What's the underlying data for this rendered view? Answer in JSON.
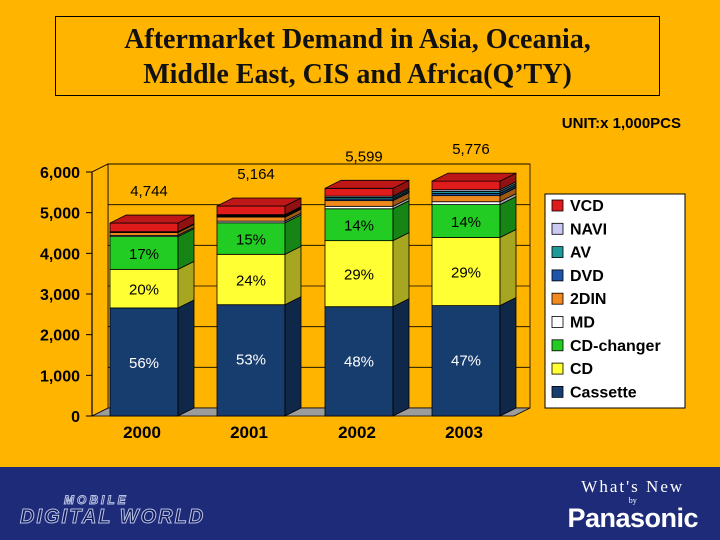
{
  "title_line1": "Aftermarket Demand in Asia, Oceania,",
  "title_line2": "Middle East, CIS and Africa(Q’TY)",
  "unit": "UNIT:x 1,000PCS",
  "footer": {
    "logo_top": "MOBILE",
    "logo_bottom": "DIGITAL WORLD",
    "whats_new": "What's New",
    "by": "by",
    "brand": "Panasonic"
  },
  "chart_data": {
    "type": "bar",
    "stacked": true,
    "categories": [
      "2000",
      "2001",
      "2002",
      "2003"
    ],
    "totals": [
      4744,
      5164,
      5599,
      5776
    ],
    "total_labels": [
      "4,744",
      "5,164",
      "5,599",
      "5,776"
    ],
    "ylim": [
      0,
      6000
    ],
    "yticks": [
      0,
      1000,
      2000,
      3000,
      4000,
      5000,
      6000
    ],
    "ytick_labels": [
      "0",
      "1,000",
      "2,000",
      "3,000",
      "4,000",
      "5,000",
      "6,000"
    ],
    "series": [
      {
        "name": "Cassette",
        "color": "#173C6E",
        "values": [
          2657,
          2737,
          2688,
          2715
        ],
        "labels": [
          "56%",
          "53%",
          "48%",
          "47%"
        ],
        "label_color": "#FFFFFF"
      },
      {
        "name": "CD",
        "color": "#FFFF33",
        "values": [
          949,
          1239,
          1624,
          1675
        ],
        "labels": [
          "20%",
          "24%",
          "29%",
          "29%"
        ],
        "label_color": "#000000"
      },
      {
        "name": "CD-changer",
        "color": "#22CC22",
        "values": [
          806,
          775,
          784,
          809
        ],
        "labels": [
          "17%",
          "15%",
          "14%",
          "14%"
        ],
        "label_color": "#000000"
      },
      {
        "name": "MD",
        "color": "#FFFFFF",
        "values": [
          30,
          40,
          60,
          70
        ],
        "labels": [
          "",
          "",
          "",
          ""
        ]
      },
      {
        "name": "2DIN",
        "color": "#F08A1E",
        "values": [
          70,
          100,
          140,
          150
        ],
        "labels": [
          "",
          "",
          "",
          ""
        ]
      },
      {
        "name": "DVD",
        "color": "#1F55A8",
        "values": [
          0,
          20,
          40,
          55
        ],
        "labels": [
          "",
          "",
          "",
          ""
        ]
      },
      {
        "name": "AV",
        "color": "#1E9A9A",
        "values": [
          10,
          20,
          40,
          50
        ],
        "labels": [
          "",
          "",
          "",
          ""
        ]
      },
      {
        "name": "NAVI",
        "color": "#C9C9F2",
        "values": [
          10,
          20,
          30,
          40
        ],
        "labels": [
          "",
          "",
          "",
          ""
        ]
      },
      {
        "name": "VCD",
        "color": "#E01B1B",
        "values": [
          212,
          213,
          193,
          212
        ],
        "labels": [
          "",
          "",
          "",
          ""
        ]
      }
    ],
    "legend_order": [
      "VCD",
      "NAVI",
      "AV",
      "DVD",
      "2DIN",
      "MD",
      "CD-changer",
      "CD",
      "Cassette"
    ],
    "legend_position": "right"
  }
}
